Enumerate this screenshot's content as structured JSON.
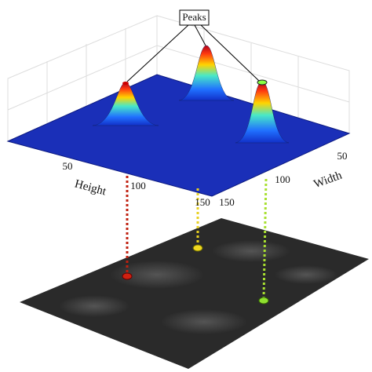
{
  "annotation": "Peaks",
  "axes": {
    "height": {
      "label": "Height",
      "ticks": [
        50,
        100,
        150
      ]
    },
    "width": {
      "label": "Width",
      "ticks": [
        50,
        100,
        150
      ]
    }
  }
}
